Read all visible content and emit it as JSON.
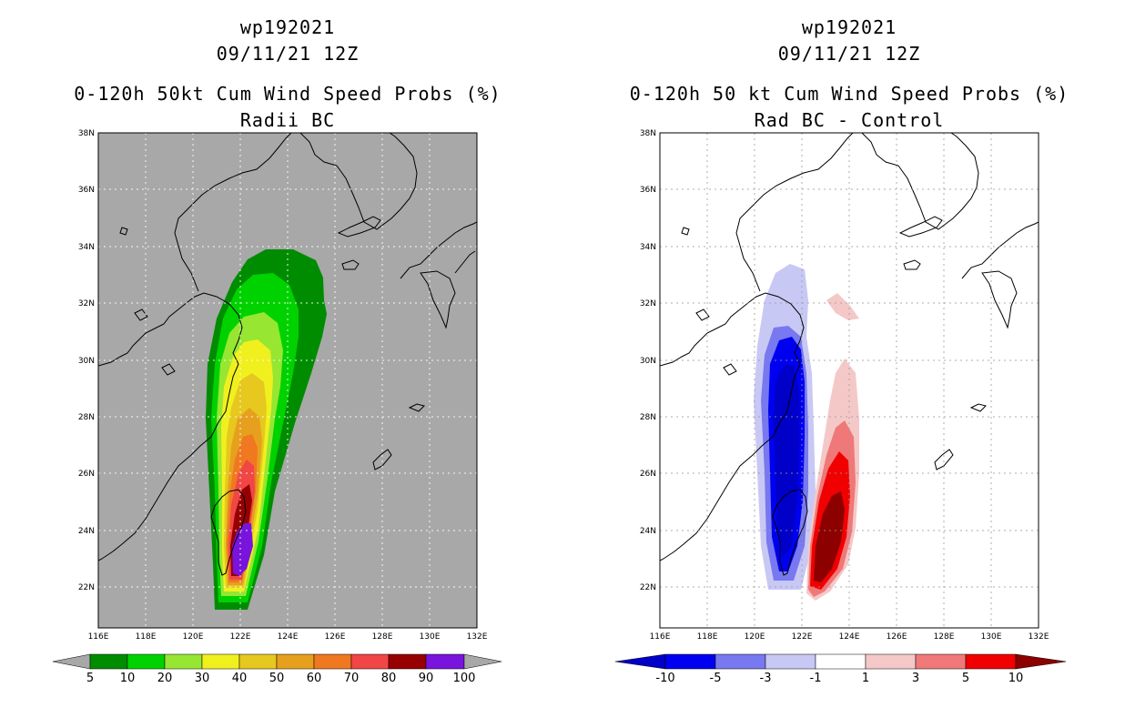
{
  "left_panel": {
    "title_line1": "wp192021",
    "title_line2": "09/11/21 12Z",
    "title_line3": "0-120h 50kt Cum Wind Speed Probs (%)",
    "title_line4": "Radii BC",
    "colorbar_labels": [
      "5",
      "10",
      "20",
      "30",
      "40",
      "50",
      "60",
      "70",
      "80",
      "90",
      "100"
    ],
    "colorbar_colors": [
      "#008c00",
      "#00d200",
      "#96e632",
      "#f0f01e",
      "#e6c81e",
      "#e6a01e",
      "#f07820",
      "#f04646",
      "#960000",
      "#7814dc"
    ],
    "background_color": "#a8a8a8"
  },
  "right_panel": {
    "title_line1": "wp192021",
    "title_line2": "09/11/21 12Z",
    "title_line3": "0-120h 50 kt Cum Wind Speed Probs (%)",
    "title_line4": "Rad BC - Control",
    "colorbar_labels": [
      "-10",
      "-5",
      "-3",
      "-1",
      "1",
      "3",
      "5",
      "10"
    ],
    "colorbar_colors": [
      "#0000c8",
      "#0000f0",
      "#7878f0",
      "#c8c8f5",
      "#ffffff",
      "#f5c8c8",
      "#f07878",
      "#f00000",
      "#8c0000"
    ]
  },
  "axes": {
    "lat_labels": [
      "38N",
      "36N",
      "34N",
      "32N",
      "30N",
      "28N",
      "26N",
      "24N",
      "22N"
    ],
    "lon_labels": [
      "116E",
      "118E",
      "120E",
      "122E",
      "124E",
      "126E",
      "128E",
      "130E",
      "132E"
    ]
  }
}
